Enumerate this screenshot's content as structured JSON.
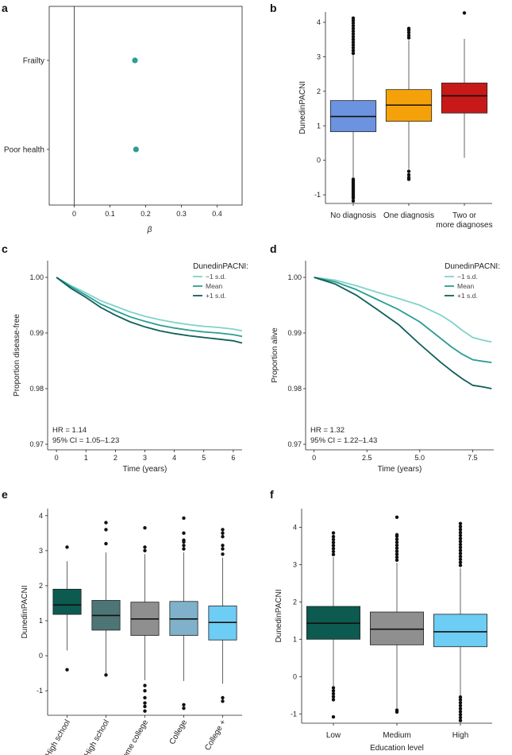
{
  "chart_data": [
    {
      "panel": "a",
      "type": "scatter",
      "title": "",
      "xlabel": "β",
      "ylabel": "",
      "xlim": [
        -0.07,
        0.47
      ],
      "xticks": [
        0,
        0.1,
        0.2,
        0.3,
        0.4
      ],
      "categories": [
        "Frailty",
        "Poor health"
      ],
      "values": [
        0.17,
        0.173
      ],
      "ci": [
        [
          0.163,
          0.177
        ],
        [
          0.166,
          0.18
        ]
      ],
      "color": "#2a9d94"
    },
    {
      "panel": "b",
      "type": "box",
      "ylabel": "DunedinPACNI",
      "ylim": [
        -1.25,
        4.3
      ],
      "yticks": [
        -1,
        0,
        1,
        2,
        3,
        4
      ],
      "categories": [
        "No diagnosis",
        "One diagnosis",
        "Two or more diagnoses"
      ],
      "boxes": [
        {
          "q1": 0.83,
          "median": 1.27,
          "q3": 1.73,
          "whislo": -0.5,
          "whishi": 3.05,
          "color": "#6b93e0",
          "fliers_lo": [
            -0.55,
            -0.6,
            -0.65,
            -0.7,
            -0.75,
            -0.8,
            -0.85,
            -0.9,
            -0.95,
            -1.0,
            -1.05,
            -1.1,
            -1.18
          ],
          "fliers_hi": [
            3.1,
            3.18,
            3.26,
            3.34,
            3.42,
            3.5,
            3.58,
            3.66,
            3.74,
            3.82,
            3.9,
            3.98,
            4.05,
            4.12
          ]
        },
        {
          "q1": 1.13,
          "median": 1.6,
          "q3": 2.05,
          "whislo": -0.25,
          "whishi": 3.48,
          "color": "#f5a20a",
          "fliers_lo": [
            -0.32,
            -0.42,
            -0.5,
            -0.55
          ],
          "fliers_hi": [
            3.55,
            3.62,
            3.7,
            3.77,
            3.82
          ]
        },
        {
          "q1": 1.37,
          "median": 1.87,
          "q3": 2.24,
          "whislo": 0.07,
          "whishi": 3.52,
          "color": "#c81919",
          "fliers_lo": [],
          "fliers_hi": [
            4.27
          ]
        }
      ]
    },
    {
      "panel": "c",
      "type": "line",
      "xlabel": "Time (years)",
      "ylabel": "Proportion disease-free",
      "xlim": [
        -0.3,
        6.3
      ],
      "ylim": [
        0.969,
        1.003
      ],
      "xticks": [
        0,
        1,
        2,
        3,
        4,
        5,
        6
      ],
      "yticks": [
        0.97,
        0.98,
        0.99,
        1.0
      ],
      "ytick_labels": [
        "0.97",
        "0.98",
        "0.99",
        "1.00"
      ],
      "legend_title": "DunedinPACNI:",
      "series": [
        {
          "name": "−1 s.d.",
          "color": "#7fd4c8",
          "x": [
            0,
            0.5,
            1,
            1.5,
            2,
            2.5,
            3,
            3.5,
            4,
            4.5,
            5,
            5.5,
            6,
            6.3
          ],
          "y": [
            1.0,
            0.9985,
            0.9972,
            0.9958,
            0.9948,
            0.9938,
            0.993,
            0.9924,
            0.9919,
            0.9915,
            0.9912,
            0.991,
            0.9907,
            0.9904
          ]
        },
        {
          "name": "Mean",
          "color": "#2a9d94",
          "x": [
            0,
            0.5,
            1,
            1.5,
            2,
            2.5,
            3,
            3.5,
            4,
            4.5,
            5,
            5.5,
            6,
            6.3
          ],
          "y": [
            1.0,
            0.9983,
            0.9968,
            0.9952,
            0.994,
            0.9929,
            0.9921,
            0.9914,
            0.9909,
            0.9905,
            0.9902,
            0.99,
            0.9897,
            0.9894
          ]
        },
        {
          "name": "+1 s.d.",
          "color": "#0f5f58",
          "x": [
            0,
            0.5,
            1,
            1.5,
            2,
            2.5,
            3,
            3.5,
            4,
            4.5,
            5,
            5.5,
            6,
            6.3
          ],
          "y": [
            1.0,
            0.998,
            0.9964,
            0.9946,
            0.9932,
            0.992,
            0.9911,
            0.9904,
            0.9899,
            0.9895,
            0.9892,
            0.9889,
            0.9886,
            0.9882
          ]
        }
      ],
      "annotation": [
        "HR = 1.14",
        "95% CI = 1.05–1.23"
      ]
    },
    {
      "panel": "d",
      "type": "line",
      "xlabel": "Time (years)",
      "ylabel": "Proportion alive",
      "xlim": [
        -0.4,
        8.5
      ],
      "ylim": [
        0.969,
        1.003
      ],
      "xticks": [
        0,
        2.5,
        5.0,
        7.5
      ],
      "xtick_labels": [
        "0",
        "2.5",
        "5.0",
        "7.5"
      ],
      "yticks": [
        0.97,
        0.98,
        0.99,
        1.0
      ],
      "ytick_labels": [
        "0.97",
        "0.98",
        "0.99",
        "1.00"
      ],
      "legend_title": "DunedinPACNI:",
      "series": [
        {
          "name": "−1 s.d.",
          "color": "#7fd4c8",
          "x": [
            0,
            1,
            2,
            3,
            4,
            5,
            6,
            6.5,
            7,
            7.5,
            8,
            8.4
          ],
          "y": [
            1.0,
            0.9995,
            0.9985,
            0.9973,
            0.9962,
            0.995,
            0.9932,
            0.992,
            0.9905,
            0.9892,
            0.9887,
            0.9884
          ]
        },
        {
          "name": "Mean",
          "color": "#2a9d94",
          "x": [
            0,
            1,
            2,
            3,
            4,
            5,
            6,
            6.5,
            7,
            7.5,
            8,
            8.4
          ],
          "y": [
            1.0,
            0.9992,
            0.9978,
            0.996,
            0.9942,
            0.992,
            0.989,
            0.9875,
            0.9862,
            0.9852,
            0.9849,
            0.9847
          ]
        },
        {
          "name": "+1 s.d.",
          "color": "#0f5f58",
          "x": [
            0,
            1,
            2,
            3,
            4,
            5,
            6,
            6.5,
            7,
            7.5,
            8,
            8.4
          ],
          "y": [
            1.0,
            0.9988,
            0.9968,
            0.9942,
            0.9915,
            0.988,
            0.9847,
            0.9832,
            0.9818,
            0.9806,
            0.9803,
            0.98
          ]
        }
      ],
      "annotation": [
        "HR = 1.32",
        "95% CI = 1.22–1.43"
      ]
    },
    {
      "panel": "e",
      "type": "box",
      "ylabel": "DunedinPACNI",
      "ylim": [
        -1.7,
        4.2
      ],
      "yticks": [
        -1,
        0,
        1,
        2,
        3,
        4
      ],
      "rotate_labels": true,
      "categories": [
        "< High school",
        "High school",
        "Some college",
        "College",
        "College +"
      ],
      "boxes": [
        {
          "q1": 1.18,
          "median": 1.45,
          "q3": 1.9,
          "whislo": 0.15,
          "whishi": 2.7,
          "color": "#0c5a50",
          "fliers_lo": [
            -0.4
          ],
          "fliers_hi": [
            3.1
          ]
        },
        {
          "q1": 0.73,
          "median": 1.15,
          "q3": 1.58,
          "whislo": -0.5,
          "whishi": 2.95,
          "color": "#4d7575",
          "fliers_lo": [
            -0.55
          ],
          "fliers_hi": [
            3.2,
            3.6,
            3.8
          ]
        },
        {
          "q1": 0.58,
          "median": 1.05,
          "q3": 1.53,
          "whislo": -0.7,
          "whishi": 2.9,
          "color": "#8f8f8f",
          "fliers_lo": [
            -0.85,
            -1.0,
            -1.2,
            -1.35,
            -1.45,
            -1.58
          ],
          "fliers_hi": [
            3.0,
            3.1,
            3.65
          ]
        },
        {
          "q1": 0.58,
          "median": 1.05,
          "q3": 1.55,
          "whislo": -0.72,
          "whishi": 2.95,
          "color": "#7fb1ca",
          "fliers_lo": [
            -1.4,
            -1.5
          ],
          "fliers_hi": [
            3.05,
            3.15,
            3.25,
            3.3,
            3.5,
            3.93
          ]
        },
        {
          "q1": 0.45,
          "median": 0.95,
          "q3": 1.42,
          "whislo": -0.8,
          "whishi": 2.8,
          "color": "#6dcdf4",
          "fliers_lo": [
            -1.2,
            -1.3
          ],
          "fliers_hi": [
            2.9,
            3.05,
            3.15,
            3.4,
            3.5,
            3.6
          ]
        }
      ]
    },
    {
      "panel": "f",
      "type": "box",
      "ylabel": "DunedinPACNI",
      "xlabel": "Education level",
      "ylim": [
        -1.25,
        4.5
      ],
      "yticks": [
        -1,
        0,
        1,
        2,
        3,
        4
      ],
      "categories": [
        "Low",
        "Medium",
        "High"
      ],
      "boxes": [
        {
          "q1": 1.0,
          "median": 1.43,
          "q3": 1.88,
          "whislo": -0.25,
          "whishi": 3.2,
          "color": "#0c5a50",
          "fliers_lo": [
            -0.3,
            -0.38,
            -0.46,
            -0.54,
            -0.62,
            -1.08
          ],
          "fliers_hi": [
            3.27,
            3.35,
            3.43,
            3.51,
            3.59,
            3.67,
            3.75,
            3.85
          ]
        },
        {
          "q1": 0.85,
          "median": 1.27,
          "q3": 1.73,
          "whislo": -0.85,
          "whishi": 3.05,
          "color": "#8f8f8f",
          "fliers_lo": [
            -0.9,
            -0.95
          ],
          "fliers_hi": [
            3.12,
            3.2,
            3.28,
            3.36,
            3.44,
            3.52,
            3.6,
            3.68,
            3.76,
            3.8,
            4.27
          ]
        },
        {
          "q1": 0.8,
          "median": 1.2,
          "q3": 1.67,
          "whislo": -0.5,
          "whishi": 2.9,
          "color": "#6dcdf4",
          "fliers_lo": [
            -0.55,
            -0.62,
            -0.7,
            -0.78,
            -0.86,
            -0.94,
            -1.02,
            -1.1,
            -1.18
          ],
          "fliers_hi": [
            2.98,
            3.06,
            3.14,
            3.22,
            3.3,
            3.38,
            3.46,
            3.54,
            3.62,
            3.7,
            3.78,
            3.86,
            3.94,
            4.02,
            4.1
          ]
        }
      ]
    }
  ]
}
